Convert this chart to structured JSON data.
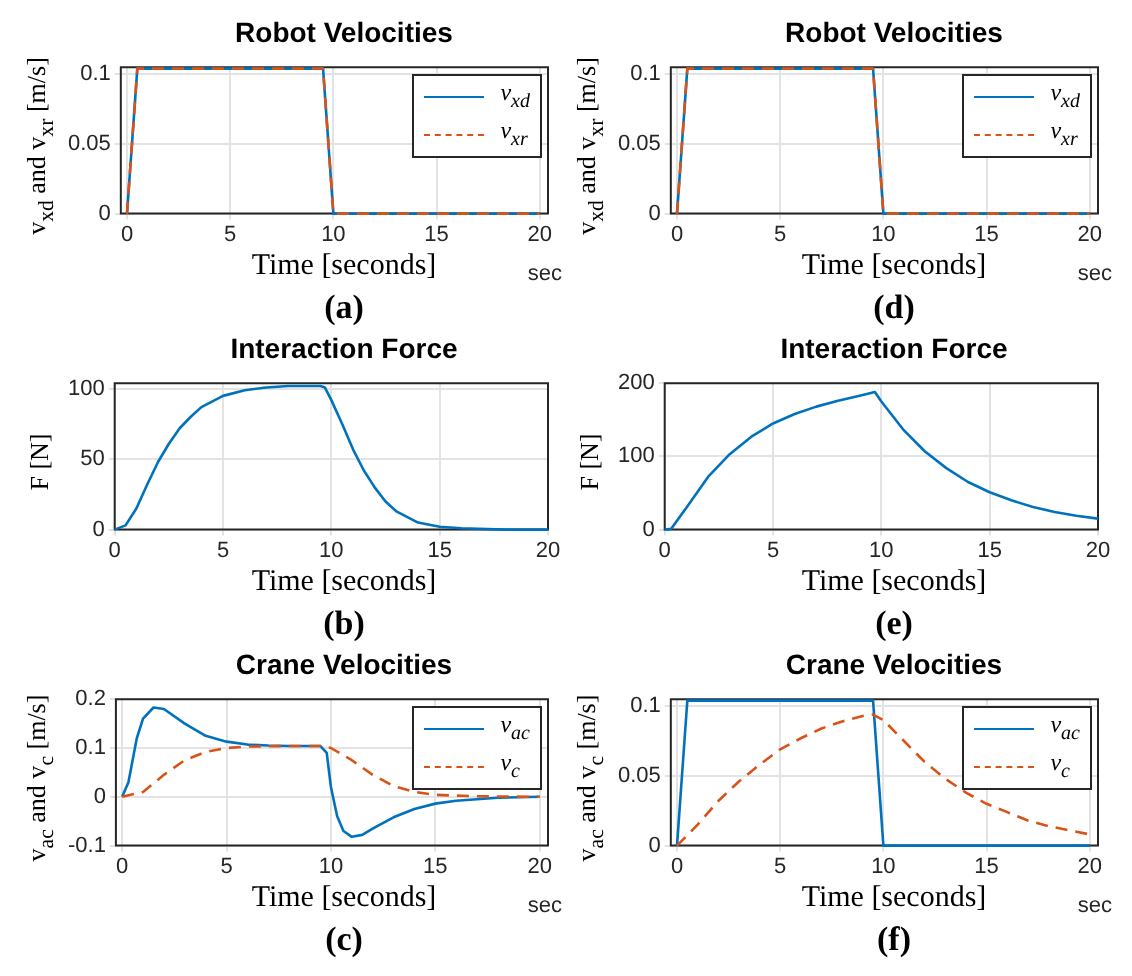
{
  "chart_data": [
    {
      "type": "line",
      "title": "Robot Velocities",
      "xlabel": "Time [seconds]",
      "ylabel": "v$_{xd}$ and v$_{xr}$ [m/s]",
      "annotations": [
        "sec",
        "(a)"
      ],
      "xlim": [
        -0.3,
        20.4
      ],
      "xticks": [
        0,
        5,
        10,
        15,
        20
      ],
      "ylim": [
        0,
        0.105
      ],
      "yticks": [
        0,
        0.05,
        0.1
      ],
      "grid": true,
      "legend": "top right",
      "series": [
        {
          "name": "v$_{xd}$",
          "color": "#0072bd",
          "line_style": "solid",
          "x": [
            0,
            0.5,
            9.5,
            10,
            20
          ],
          "values": [
            0,
            0.104,
            0.104,
            0,
            0
          ]
        },
        {
          "name": "v$_{xr}$",
          "color": "#d95319",
          "line_style": "dashed",
          "x": [
            0,
            0.5,
            9.5,
            10,
            20
          ],
          "values": [
            0,
            0.104,
            0.104,
            0,
            0
          ]
        }
      ]
    },
    {
      "type": "line",
      "title": "Robot Velocities",
      "xlabel": "Time [seconds]",
      "ylabel": "v$_{xd}$ and v$_{xr}$ [m/s]",
      "annotations": [
        "sec",
        "(d)"
      ],
      "xlim": [
        -0.3,
        20.4
      ],
      "xticks": [
        0,
        5,
        10,
        15,
        20
      ],
      "ylim": [
        0,
        0.105
      ],
      "yticks": [
        0,
        0.05,
        0.1
      ],
      "grid": true,
      "legend": "top right",
      "series": [
        {
          "name": "v$_{xd}$",
          "color": "#0072bd",
          "line_style": "solid",
          "x": [
            0,
            0.5,
            9.5,
            10,
            20
          ],
          "values": [
            0,
            0.104,
            0.104,
            0,
            0
          ]
        },
        {
          "name": "v$_{xr}$",
          "color": "#d95319",
          "line_style": "dashed",
          "x": [
            0,
            0.5,
            9.5,
            10,
            20
          ],
          "values": [
            0,
            0.104,
            0.104,
            0,
            0
          ]
        }
      ]
    },
    {
      "type": "line",
      "title": "Interaction Force",
      "xlabel": "Time [seconds]",
      "ylabel": "F [N]",
      "annotations": [
        "(b)"
      ],
      "xlim": [
        0,
        20
      ],
      "xticks": [
        0,
        5,
        10,
        15,
        20
      ],
      "ylim": [
        0,
        104
      ],
      "yticks": [
        0,
        50,
        100
      ],
      "grid": true,
      "series": [
        {
          "color": "#0072bd",
          "line_style": "solid",
          "x": [
            0,
            0.5,
            1,
            1.5,
            2,
            2.5,
            3,
            3.5,
            4,
            5,
            6,
            7,
            8,
            9.5,
            9.7,
            10,
            10.5,
            11,
            11.5,
            12,
            12.5,
            13,
            14,
            15,
            16,
            18,
            20
          ],
          "values": [
            0,
            3,
            15,
            32,
            48,
            61,
            72,
            80,
            87,
            95,
            99,
            101,
            102,
            102,
            101,
            92,
            75,
            57,
            42,
            30,
            20,
            13,
            5,
            2,
            1,
            0,
            0
          ]
        }
      ]
    },
    {
      "type": "line",
      "title": "Interaction Force",
      "xlabel": "Time [seconds]",
      "ylabel": "F [N]",
      "annotations": [
        "(e)"
      ],
      "xlim": [
        0,
        20
      ],
      "xticks": [
        0,
        5,
        10,
        15,
        20
      ],
      "ylim": [
        0,
        200
      ],
      "yticks": [
        0,
        100,
        200
      ],
      "grid": true,
      "series": [
        {
          "color": "#0072bd",
          "line_style": "solid",
          "x": [
            0,
            0.3,
            1,
            2,
            3,
            4,
            5,
            6,
            7,
            8,
            9,
            9.7,
            10,
            11,
            12,
            13,
            14,
            15,
            16,
            17,
            18,
            19,
            20
          ],
          "values": [
            0,
            1,
            30,
            72,
            103,
            127,
            145,
            158,
            168,
            176,
            183,
            188,
            175,
            137,
            107,
            84,
            65,
            51,
            40,
            31,
            24,
            19,
            15
          ]
        }
      ]
    },
    {
      "type": "line",
      "title": "Crane Velocities",
      "xlabel": "Time [seconds]",
      "ylabel": "v$_{ac}$ and v$_{c}$ [m/s]",
      "annotations": [
        "sec",
        "(c)"
      ],
      "xlim": [
        -0.3,
        20.4
      ],
      "xticks": [
        0,
        5,
        10,
        15,
        20
      ],
      "ylim": [
        -0.1,
        0.2
      ],
      "yticks": [
        -0.1,
        0,
        0.1,
        0.2
      ],
      "grid": true,
      "legend": "top right",
      "series": [
        {
          "name": "v$_{ac}$",
          "color": "#0072bd",
          "line_style": "solid",
          "x": [
            0,
            0.3,
            0.7,
            1,
            1.5,
            2,
            3,
            4,
            5,
            6,
            7,
            8,
            9.5,
            9.8,
            10,
            10.3,
            10.6,
            11,
            11.5,
            12,
            13,
            14,
            15,
            16,
            18,
            20
          ],
          "values": [
            0,
            0.03,
            0.12,
            0.16,
            0.183,
            0.18,
            0.15,
            0.125,
            0.113,
            0.107,
            0.105,
            0.104,
            0.104,
            0.09,
            0.02,
            -0.04,
            -0.07,
            -0.082,
            -0.078,
            -0.065,
            -0.042,
            -0.025,
            -0.014,
            -0.008,
            -0.002,
            0
          ]
        },
        {
          "name": "v$_{c}$",
          "color": "#d95319",
          "line_style": "dashed",
          "x": [
            0,
            1,
            2,
            3,
            4,
            5,
            6,
            8,
            9.5,
            10,
            11,
            12,
            13,
            14,
            15,
            17,
            20
          ],
          "values": [
            0,
            0.01,
            0.045,
            0.075,
            0.092,
            0.1,
            0.103,
            0.104,
            0.104,
            0.1,
            0.075,
            0.045,
            0.022,
            0.01,
            0.004,
            0.001,
            0
          ]
        }
      ]
    },
    {
      "type": "line",
      "title": "Crane Velocities",
      "xlabel": "Time [seconds]",
      "ylabel": "v$_{ac}$ and v$_{c}$ [m/s]",
      "annotations": [
        "sec",
        "(f)"
      ],
      "xlim": [
        -0.3,
        20.4
      ],
      "xticks": [
        0,
        5,
        10,
        15,
        20
      ],
      "ylim": [
        0,
        0.105
      ],
      "yticks": [
        0,
        0.05,
        0.1
      ],
      "grid": true,
      "legend": "top right",
      "series": [
        {
          "name": "v$_{ac}$",
          "color": "#0072bd",
          "line_style": "solid",
          "x": [
            0,
            0.5,
            9.5,
            10,
            20
          ],
          "values": [
            0,
            0.104,
            0.104,
            0,
            0
          ]
        },
        {
          "name": "v$_{c}$",
          "color": "#d95319",
          "line_style": "dashed",
          "x": [
            0,
            1,
            2,
            3,
            4,
            5,
            6,
            7,
            8,
            9,
            9.5,
            10,
            11,
            12,
            13,
            14,
            15,
            16,
            17,
            18,
            19,
            20
          ],
          "values": [
            0,
            0.015,
            0.032,
            0.046,
            0.058,
            0.069,
            0.077,
            0.084,
            0.089,
            0.093,
            0.094,
            0.09,
            0.075,
            0.06,
            0.048,
            0.038,
            0.03,
            0.024,
            0.018,
            0.014,
            0.011,
            0.008
          ]
        }
      ]
    }
  ]
}
